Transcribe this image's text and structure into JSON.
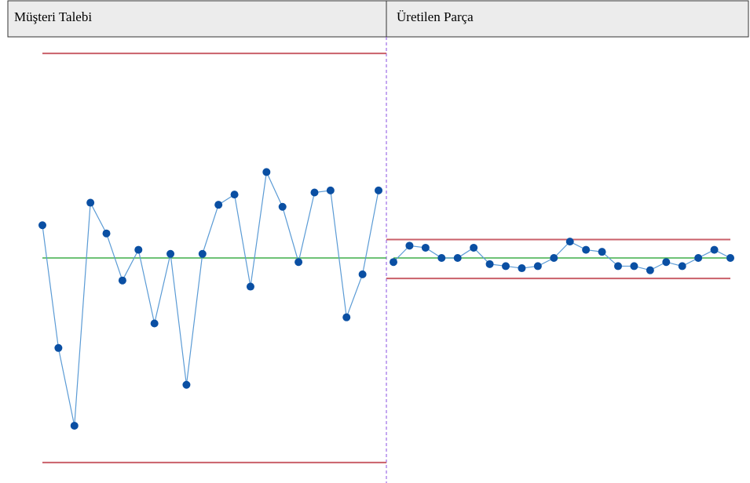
{
  "chart_data": [
    {
      "type": "line",
      "title": "Müşteri Talebi",
      "values": [
        16,
        -44,
        -82,
        27,
        12,
        -11,
        4,
        -32,
        2,
        -62,
        2,
        26,
        31,
        -14,
        42,
        25,
        -2,
        32,
        33,
        -29,
        -8,
        33
      ],
      "ucl": 100,
      "cl": 0,
      "lcl": -100,
      "ylim": [
        -110,
        110
      ],
      "line_color": "#5b9bd5",
      "marker_color": "#0a4fa3",
      "limit_color": "#c9606a",
      "center_color": "#3fae49"
    },
    {
      "type": "line",
      "title": "Üretilen Parça",
      "values": [
        -2,
        6,
        5,
        0,
        0,
        5,
        -3,
        -4,
        -5,
        -4,
        0,
        8,
        4,
        3,
        -4,
        -4,
        -6,
        -2,
        -4,
        0,
        4,
        0
      ],
      "ucl": 9,
      "cl": 0,
      "lcl": -10,
      "ylim": [
        -110,
        110
      ],
      "line_color": "#5b9bd5",
      "marker_color": "#0a4fa3",
      "limit_color": "#c9606a",
      "center_color": "#3fae49"
    }
  ]
}
